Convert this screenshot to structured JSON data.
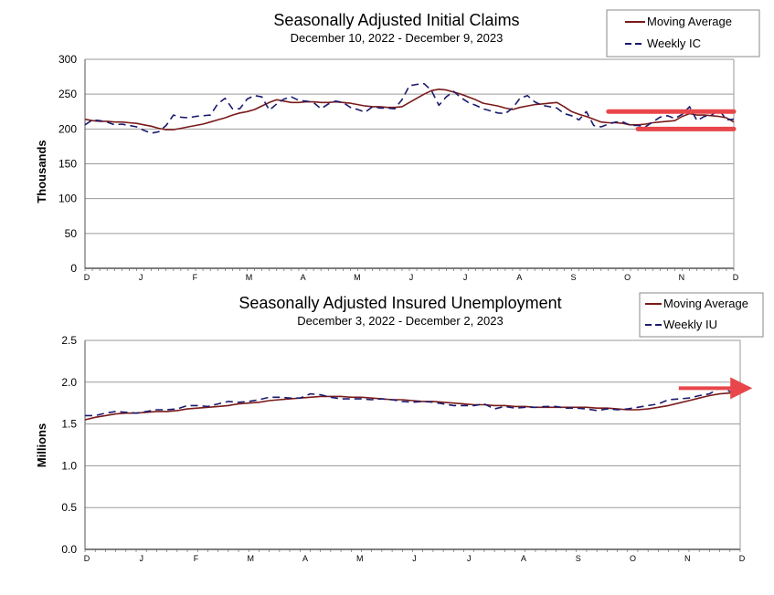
{
  "chart_data": [
    {
      "type": "line",
      "title": "Seasonally Adjusted Initial Claims",
      "subtitle": "December 10, 2022 - December 9, 2023",
      "xlabel": "",
      "ylabel": "Thousands",
      "ylim": [
        0,
        300
      ],
      "yticks": [
        "0",
        "50",
        "100",
        "150",
        "200",
        "250",
        "300"
      ],
      "x_month_labels": [
        "D",
        "J",
        "F",
        "M",
        "A",
        "M",
        "J",
        "J",
        "A",
        "S",
        "O",
        "N",
        "D"
      ],
      "grid": "horizontal",
      "legend_position": "top-right",
      "series": [
        {
          "name": "Moving Average",
          "color": "#7a1a1a",
          "style": "solid",
          "values": [
            214,
            212,
            211,
            211,
            210,
            210,
            209,
            208,
            206,
            204,
            201,
            199,
            199,
            201,
            203,
            205,
            207,
            210,
            213,
            216,
            220,
            223,
            225,
            228,
            233,
            238,
            242,
            240,
            238,
            238,
            239,
            239,
            238,
            238,
            239,
            238,
            237,
            235,
            233,
            232,
            232,
            231,
            231,
            232,
            238,
            244,
            250,
            255,
            257,
            256,
            253,
            250,
            246,
            242,
            237,
            235,
            233,
            230,
            228,
            231,
            233,
            235,
            236,
            237,
            238,
            232,
            225,
            221,
            218,
            214,
            210,
            209,
            209,
            208,
            206,
            206,
            207,
            209,
            210,
            211,
            212,
            218,
            222,
            220,
            220,
            219,
            218,
            216,
            210
          ]
        },
        {
          "name": "Weekly IC",
          "color": "#1a1a6e",
          "style": "dashed",
          "values": [
            206,
            213,
            212,
            210,
            206,
            207,
            205,
            203,
            198,
            194,
            196,
            205,
            220,
            217,
            216,
            218,
            219,
            220,
            236,
            244,
            229,
            229,
            243,
            248,
            246,
            227,
            236,
            243,
            246,
            241,
            240,
            238,
            229,
            236,
            240,
            238,
            231,
            228,
            224,
            232,
            230,
            230,
            229,
            242,
            262,
            264,
            265,
            255,
            234,
            246,
            254,
            245,
            238,
            234,
            229,
            226,
            223,
            222,
            230,
            244,
            248,
            239,
            234,
            232,
            230,
            222,
            219,
            213,
            225,
            205,
            203,
            207,
            210,
            210,
            205,
            205,
            203,
            210,
            217,
            219,
            215,
            221,
            232,
            212,
            218,
            220,
            228,
            213,
            214
          ]
        }
      ],
      "reference_lines": [
        {
          "value": 225,
          "x_start_week": 71,
          "x_end_week": 94,
          "color": "#e8464a"
        },
        {
          "value": 200,
          "x_start_week": 75,
          "x_end_week": 94,
          "color": "#e8464a"
        }
      ]
    },
    {
      "type": "line",
      "title": "Seasonally Adjusted Insured Unemployment",
      "subtitle": "December 3, 2022 - December 2, 2023",
      "xlabel": "",
      "ylabel": "Millions",
      "ylim": [
        0,
        2.5
      ],
      "yticks": [
        "0.0",
        "0.5",
        "1.0",
        "1.5",
        "2.0",
        "2.5"
      ],
      "x_month_labels": [
        "D",
        "J",
        "F",
        "M",
        "A",
        "M",
        "J",
        "J",
        "A",
        "S",
        "O",
        "N",
        "D"
      ],
      "grid": "horizontal",
      "legend_position": "top-right",
      "series": [
        {
          "name": "Moving Average",
          "color": "#7a1a1a",
          "style": "solid",
          "values": [
            1.55,
            1.58,
            1.6,
            1.62,
            1.63,
            1.63,
            1.64,
            1.65,
            1.65,
            1.66,
            1.68,
            1.69,
            1.7,
            1.71,
            1.72,
            1.74,
            1.75,
            1.76,
            1.78,
            1.79,
            1.8,
            1.81,
            1.82,
            1.83,
            1.83,
            1.83,
            1.82,
            1.82,
            1.81,
            1.8,
            1.79,
            1.79,
            1.78,
            1.77,
            1.77,
            1.76,
            1.75,
            1.74,
            1.73,
            1.73,
            1.72,
            1.72,
            1.71,
            1.71,
            1.7,
            1.7,
            1.7,
            1.7,
            1.7,
            1.7,
            1.69,
            1.69,
            1.68,
            1.67,
            1.67,
            1.68,
            1.7,
            1.72,
            1.75,
            1.78,
            1.81,
            1.84,
            1.86,
            1.87,
            1.87
          ]
        },
        {
          "name": "Weekly IU",
          "color": "#1a1a6e",
          "style": "dashed",
          "values": [
            1.6,
            1.6,
            1.63,
            1.65,
            1.64,
            1.63,
            1.65,
            1.67,
            1.67,
            1.68,
            1.72,
            1.72,
            1.71,
            1.74,
            1.77,
            1.76,
            1.77,
            1.79,
            1.82,
            1.82,
            1.81,
            1.81,
            1.86,
            1.85,
            1.82,
            1.8,
            1.8,
            1.8,
            1.79,
            1.8,
            1.79,
            1.77,
            1.76,
            1.77,
            1.76,
            1.74,
            1.72,
            1.72,
            1.72,
            1.74,
            1.68,
            1.71,
            1.69,
            1.7,
            1.7,
            1.71,
            1.71,
            1.69,
            1.69,
            1.68,
            1.66,
            1.68,
            1.67,
            1.68,
            1.7,
            1.72,
            1.74,
            1.79,
            1.8,
            1.81,
            1.84,
            1.86,
            1.93,
            1.89,
            1.87
          ]
        }
      ],
      "annotations": [
        {
          "type": "arrow",
          "color": "#e8464a",
          "y_value": 1.95,
          "x_start_week": 58,
          "x_end_week": 65
        }
      ]
    }
  ]
}
